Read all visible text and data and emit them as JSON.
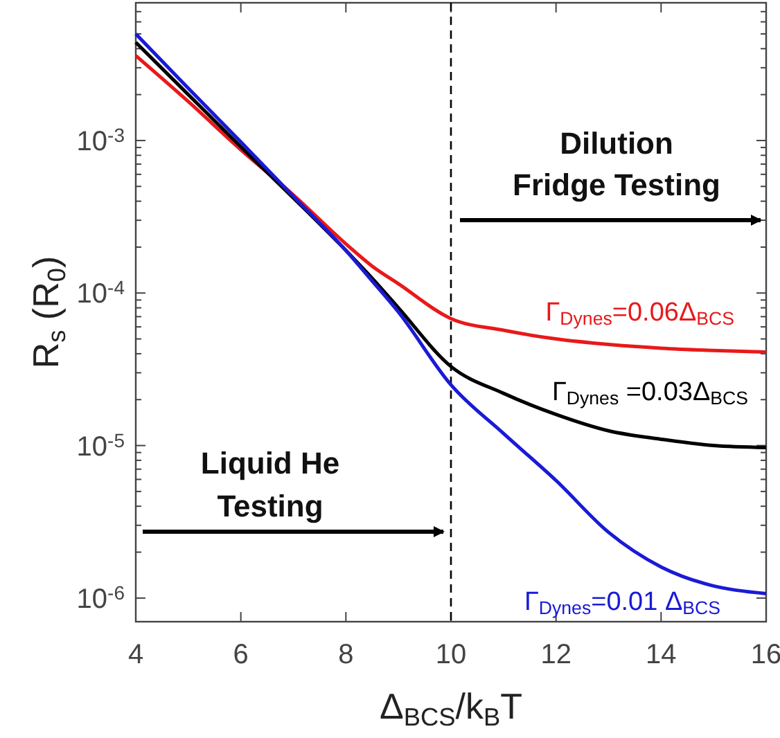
{
  "chart_data": {
    "type": "line",
    "log": "y",
    "xlabel": "Δ$_{BCS}$/k$_{B}$T",
    "ylabel": "R$_{s}$ (R$_{0}$)",
    "x": [
      4,
      5,
      6,
      7,
      8,
      8.5,
      9,
      10,
      11,
      12,
      13,
      14,
      15,
      16
    ],
    "xlim": [
      4,
      16
    ],
    "xticks": [
      4,
      6,
      8,
      10,
      12,
      14,
      16
    ],
    "ylim": [
      7e-07,
      0.008
    ],
    "yticks": [
      {
        "value": 1e-06,
        "label": "10$^{-6}$"
      },
      {
        "value": 2e-06,
        "label": null
      },
      {
        "value": 3e-06,
        "label": null
      },
      {
        "value": 4e-06,
        "label": null
      },
      {
        "value": 5e-06,
        "label": null
      },
      {
        "value": 6e-06,
        "label": null
      },
      {
        "value": 7e-06,
        "label": null
      },
      {
        "value": 8e-06,
        "label": null
      },
      {
        "value": 9e-06,
        "label": null
      },
      {
        "value": 1e-05,
        "label": "10$^{-5}$"
      },
      {
        "value": 2e-05,
        "label": null
      },
      {
        "value": 3e-05,
        "label": null
      },
      {
        "value": 4e-05,
        "label": null
      },
      {
        "value": 5e-05,
        "label": null
      },
      {
        "value": 6e-05,
        "label": null
      },
      {
        "value": 7e-05,
        "label": null
      },
      {
        "value": 8e-05,
        "label": null
      },
      {
        "value": 9e-05,
        "label": null
      },
      {
        "value": 0.0001,
        "label": "10$^{-4}$"
      },
      {
        "value": 0.0002,
        "label": null
      },
      {
        "value": 0.0003,
        "label": null
      },
      {
        "value": 0.0004,
        "label": null
      },
      {
        "value": 0.0005,
        "label": null
      },
      {
        "value": 0.0006,
        "label": null
      },
      {
        "value": 0.0007,
        "label": null
      },
      {
        "value": 0.0008,
        "label": null
      },
      {
        "value": 0.0009,
        "label": null
      },
      {
        "value": 0.001,
        "label": "10$^{-3}$"
      },
      {
        "value": 0.002,
        "label": null
      },
      {
        "value": 0.003,
        "label": null
      },
      {
        "value": 0.004,
        "label": null
      },
      {
        "value": 0.005,
        "label": null
      },
      {
        "value": 0.006,
        "label": null
      },
      {
        "value": 0.007,
        "label": null
      },
      {
        "value": 0.008,
        "label": null
      }
    ],
    "grid": false,
    "marker": "none",
    "line_style": "solid",
    "series": [
      {
        "name": "Γ$_{Dynes}$=0.06Δ$_{BCS}$",
        "color": "#e8191b",
        "values": [
          0.0036,
          0.0018,
          0.00087,
          0.00044,
          0.00021,
          0.00015,
          0.000115,
          6.8e-05,
          5.7e-05,
          5e-05,
          4.6e-05,
          4.35e-05,
          4.2e-05,
          4.1e-05
        ]
      },
      {
        "name": "Γ$_{Dynes}$ =0.03Δ$_{BCS}$",
        "color": "#000000",
        "values": [
          0.0044,
          0.002,
          0.00091,
          0.00042,
          0.00019,
          0.000125,
          8e-05,
          3.3e-05,
          2.2e-05,
          1.6e-05,
          1.25e-05,
          1.1e-05,
          1e-05,
          9.7e-06
        ]
      },
      {
        "name": "Γ$_{Dynes}$=0.01 Δ$_{BCS}$",
        "color": "#1a1ad6",
        "values": [
          0.005,
          0.0022,
          0.00098,
          0.00043,
          0.00019,
          0.00012,
          7.5e-05,
          2.5e-05,
          1.2e-05,
          5.9e-06,
          2.7e-06,
          1.6e-06,
          1.2e-06,
          1.07e-06
        ]
      }
    ],
    "ref_lines": [
      {
        "axis": "x",
        "value": 10,
        "line_style": "dashed",
        "color": "#000000"
      }
    ],
    "annotations": [
      "Dilution Fridge Testing",
      "Liquid He Testing"
    ]
  }
}
